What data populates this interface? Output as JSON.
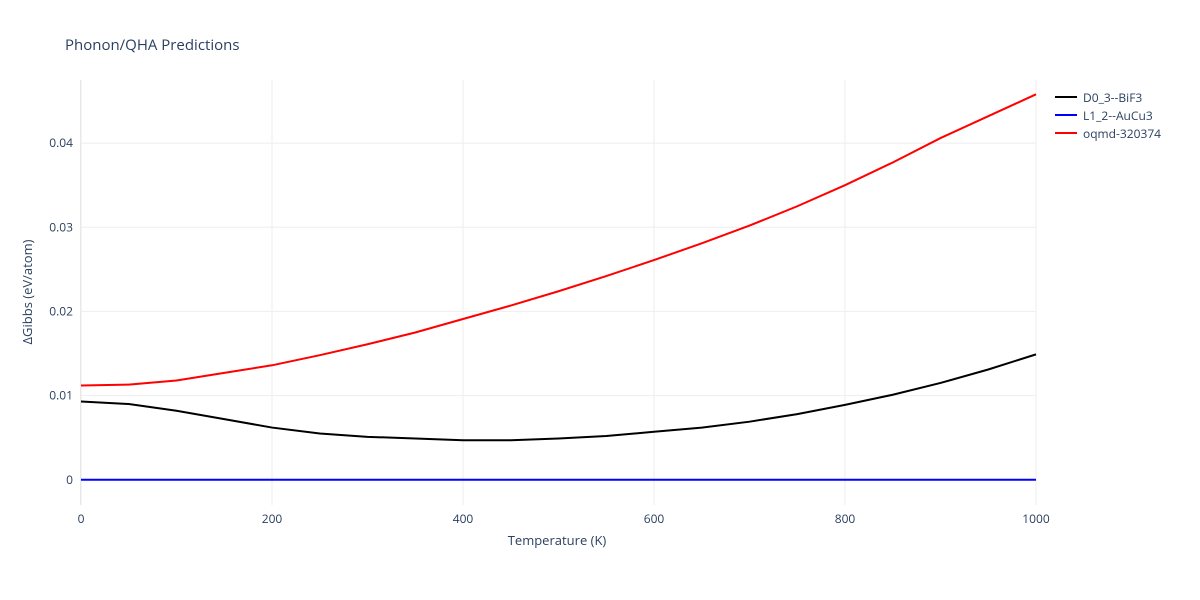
{
  "title": "Phonon/QHA Predictions",
  "chart": {
    "type": "line",
    "xlabel": "Temperature (K)",
    "ylabel": "ΔGibbs (eV/atom)",
    "xlim": [
      0,
      1000
    ],
    "ylim": [
      -0.003,
      0.0475
    ],
    "xticks": [
      0,
      200,
      400,
      600,
      800,
      1000
    ],
    "yticks": [
      0,
      0.01,
      0.02,
      0.03,
      0.04
    ],
    "xtick_labels": [
      "0",
      "200",
      "400",
      "600",
      "800",
      "1000"
    ],
    "ytick_labels": [
      "0",
      "0.01",
      "0.02",
      "0.03",
      "0.04"
    ],
    "grid_color": "#eeeeee",
    "background_color": "#ffffff",
    "axis_line_color": "#e8e8e8",
    "label_fontsize": 13,
    "tick_fontsize": 12,
    "title_fontsize": 15,
    "line_width": 2,
    "series": [
      {
        "name": "D0_3--BiF3",
        "color": "#000000",
        "x": [
          0,
          50,
          100,
          150,
          200,
          250,
          300,
          350,
          400,
          450,
          500,
          550,
          600,
          650,
          700,
          750,
          800,
          850,
          900,
          950,
          1000
        ],
        "y": [
          0.0093,
          0.009,
          0.0082,
          0.0072,
          0.0062,
          0.0055,
          0.0051,
          0.0049,
          0.0047,
          0.0047,
          0.0049,
          0.0052,
          0.0057,
          0.0062,
          0.0069,
          0.0078,
          0.0089,
          0.0101,
          0.0115,
          0.0131,
          0.0149
        ]
      },
      {
        "name": "L1_2--AuCu3",
        "color": "#0000ff",
        "x": [
          0,
          1000
        ],
        "y": [
          0.0,
          0.0
        ]
      },
      {
        "name": "oqmd-320374",
        "color": "#ff0000",
        "x": [
          0,
          50,
          100,
          150,
          200,
          250,
          300,
          350,
          400,
          450,
          500,
          550,
          600,
          650,
          700,
          750,
          800,
          850,
          900,
          950,
          1000
        ],
        "y": [
          0.0112,
          0.0113,
          0.0118,
          0.0127,
          0.0136,
          0.0148,
          0.0161,
          0.0175,
          0.0191,
          0.0207,
          0.0224,
          0.0242,
          0.0261,
          0.0281,
          0.0302,
          0.0325,
          0.035,
          0.0377,
          0.0406,
          0.0432,
          0.0458
        ]
      }
    ]
  },
  "legend": {
    "items": [
      {
        "label": "D0_3--BiF3",
        "color": "#000000"
      },
      {
        "label": "L1_2--AuCu3",
        "color": "#0000ff"
      },
      {
        "label": "oqmd-320374",
        "color": "#ff0000"
      }
    ]
  }
}
